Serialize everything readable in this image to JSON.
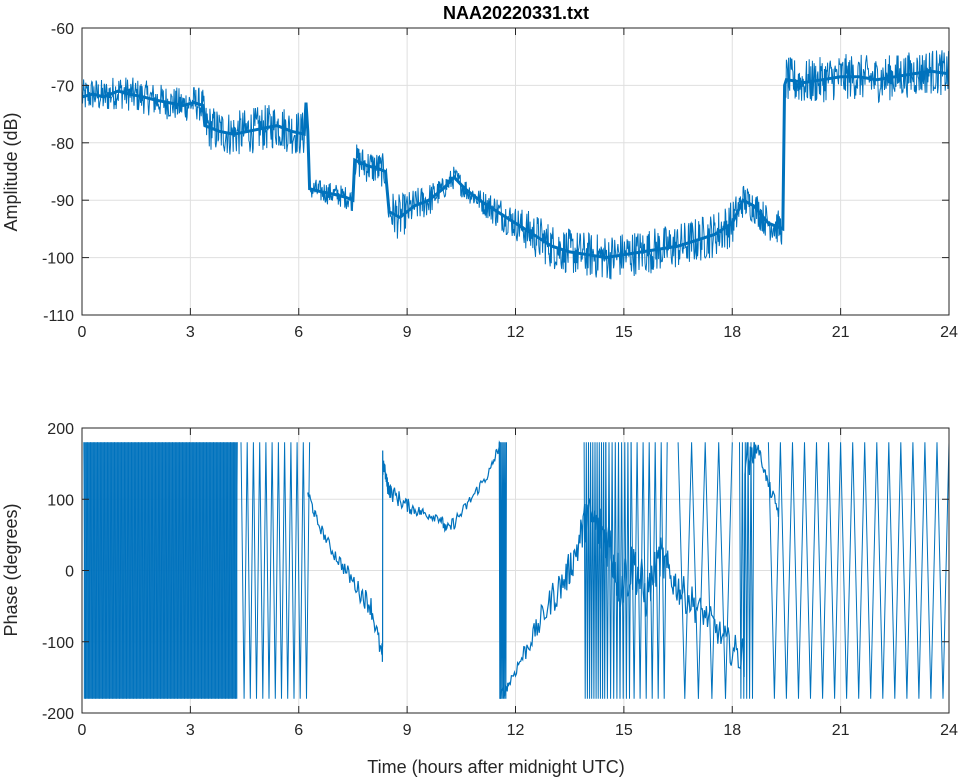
{
  "chart_data": [
    {
      "type": "line",
      "title": "NAA20220331.txt",
      "xlabel": "",
      "ylabel": "Amplitude (dB)",
      "xlim": [
        0,
        24
      ],
      "ylim": [
        -110,
        -60
      ],
      "xticks": [
        0,
        3,
        6,
        9,
        12,
        15,
        18,
        21,
        24
      ],
      "yticks": [
        -110,
        -100,
        -90,
        -80,
        -70,
        -60
      ],
      "grid": true,
      "color": "#0072bd",
      "series": [
        {
          "x": [
            0,
            0.3,
            0.6,
            1.0,
            1.3,
            1.7,
            2.0,
            2.4,
            2.8,
            3.1,
            3.35,
            3.4,
            3.8,
            4.2,
            4.6,
            5.0,
            5.4,
            5.8,
            6.15,
            6.2,
            6.25,
            6.3,
            6.6,
            7.0,
            7.3,
            7.5,
            7.55,
            7.9,
            8.2,
            8.4,
            8.5,
            8.8,
            9.2,
            9.6,
            10.0,
            10.3,
            10.6,
            11.0,
            11.5,
            12.0,
            12.5,
            13.0,
            13.5,
            14.0,
            14.5,
            15.0,
            15.5,
            16.0,
            16.5,
            17.0,
            17.5,
            18.0,
            18.3,
            18.6,
            19.0,
            19.4,
            19.45,
            19.5,
            20.0,
            20.5,
            21.0,
            21.5,
            22.0,
            22.5,
            23.0,
            23.5,
            24.0
          ],
          "y": [
            -72,
            -71.5,
            -72,
            -71,
            -71.5,
            -72,
            -72.5,
            -73,
            -73.5,
            -73,
            -73.5,
            -77,
            -78,
            -78.5,
            -78,
            -77.5,
            -77,
            -78,
            -78.5,
            -73,
            -78,
            -88,
            -88.5,
            -89,
            -89.5,
            -90,
            -83,
            -84,
            -84.5,
            -85,
            -92,
            -93,
            -91,
            -90,
            -88,
            -86,
            -88,
            -90,
            -92,
            -94,
            -96,
            -98,
            -99,
            -99.5,
            -100,
            -99.5,
            -99,
            -98.5,
            -98,
            -97,
            -96,
            -94,
            -90,
            -91,
            -94,
            -95,
            -70,
            -69,
            -69.5,
            -69,
            -68.5,
            -68.5,
            -69,
            -68.5,
            -68,
            -67.5,
            -68
          ],
          "band": [
            3,
            3,
            3,
            3,
            3,
            3,
            3,
            3,
            3,
            3,
            3,
            4,
            4,
            4,
            4,
            4,
            4,
            4,
            4,
            2,
            4,
            2,
            2,
            2,
            2,
            2,
            3,
            3,
            3,
            3,
            4,
            4,
            3,
            3,
            2,
            2,
            2,
            2,
            3,
            3,
            4,
            4,
            4,
            4,
            4,
            4,
            4,
            4,
            4,
            4,
            4,
            4,
            3,
            3,
            3,
            3,
            4,
            4,
            4,
            4,
            4,
            4,
            4,
            4,
            4,
            4,
            4
          ]
        }
      ]
    },
    {
      "type": "line",
      "title": "",
      "xlabel": "Time (hours after midnight UTC)",
      "ylabel": "Phase (degrees)",
      "xlim": [
        0,
        24
      ],
      "ylim": [
        -200,
        200
      ],
      "xticks": [
        0,
        3,
        6,
        9,
        12,
        15,
        18,
        21,
        24
      ],
      "yticks": [
        -200,
        -100,
        0,
        100,
        200
      ],
      "grid": true,
      "color": "#0072bd",
      "wrapped_segments": [
        [
          0.05,
          4.3
        ],
        [
          4.4,
          6.3
        ],
        [
          11.55,
          11.75
        ],
        [
          13.9,
          14.5
        ],
        [
          14.5,
          15.2
        ],
        [
          15.2,
          16.2
        ],
        [
          16.5,
          18.0
        ],
        [
          18.2,
          18.6
        ],
        [
          19.0,
          24.0
        ]
      ],
      "wrap_density": [
        90,
        22,
        12,
        20,
        16,
        12,
        8,
        10,
        30
      ],
      "series": [
        {
          "x": [
            6.25,
            6.5,
            6.9,
            7.3,
            7.7,
            8.0,
            8.3,
            8.35,
            8.45,
            8.55,
            8.9,
            9.2,
            9.5,
            9.9,
            10.1,
            10.5,
            10.9,
            11.3,
            11.55,
            11.6,
            11.8,
            12.2,
            12.6,
            13.0,
            13.4,
            13.7,
            14.0,
            14.3,
            14.6,
            14.9,
            15.3,
            15.6,
            16.0,
            16.3,
            16.6,
            17.0,
            17.4,
            17.8,
            18.2,
            18.5,
            18.7,
            19.0,
            19.3
          ],
          "y": [
            110,
            70,
            30,
            0,
            -30,
            -50,
            -120,
            150,
            120,
            110,
            95,
            85,
            80,
            75,
            55,
            80,
            110,
            140,
            175,
            -175,
            -160,
            -120,
            -80,
            -40,
            -10,
            30,
            80,
            60,
            40,
            -20,
            10,
            -40,
            20,
            -10,
            -30,
            -50,
            -70,
            -100,
            -120,
            160,
            175,
            120,
            80
          ],
          "noise": [
            8,
            8,
            10,
            12,
            15,
            15,
            20,
            10,
            12,
            12,
            10,
            8,
            8,
            8,
            10,
            8,
            8,
            8,
            6,
            8,
            10,
            15,
            20,
            25,
            25,
            30,
            30,
            40,
            40,
            40,
            40,
            30,
            30,
            25,
            25,
            20,
            20,
            25,
            30,
            15,
            8,
            10,
            10
          ]
        }
      ]
    }
  ]
}
